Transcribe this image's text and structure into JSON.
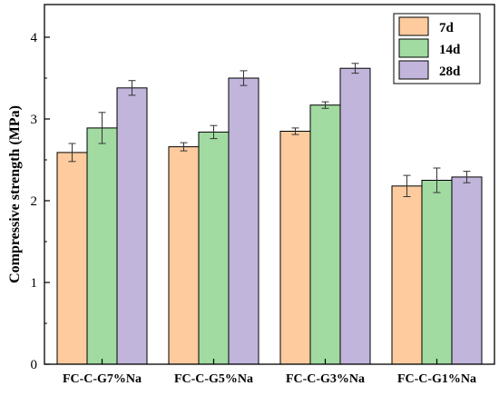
{
  "chart_data": {
    "type": "bar",
    "title": "",
    "xlabel": "",
    "ylabel": "Compressive strength (MPa)",
    "ylim": [
      0,
      4.4
    ],
    "yticks": [
      0,
      1,
      2,
      3,
      4
    ],
    "categories": [
      "FC-C-G7%Na",
      "FC-C-G5%Na",
      "FC-C-G3%Na",
      "FC-C-G1%Na"
    ],
    "series": [
      {
        "name": "7d",
        "color": "#FDCB9E",
        "values": [
          2.59,
          2.66,
          2.85,
          2.18
        ],
        "errors": [
          0.11,
          0.05,
          0.04,
          0.13
        ]
      },
      {
        "name": "14d",
        "color": "#A1DBA1",
        "values": [
          2.89,
          2.84,
          3.17,
          2.25
        ],
        "errors": [
          0.19,
          0.08,
          0.04,
          0.15
        ]
      },
      {
        "name": "28d",
        "color": "#C2B5DC",
        "values": [
          3.38,
          3.5,
          3.62,
          2.29
        ],
        "errors": [
          0.09,
          0.09,
          0.06,
          0.07
        ]
      }
    ],
    "error_bars": true,
    "grid": false,
    "legend_position": "top-right"
  }
}
